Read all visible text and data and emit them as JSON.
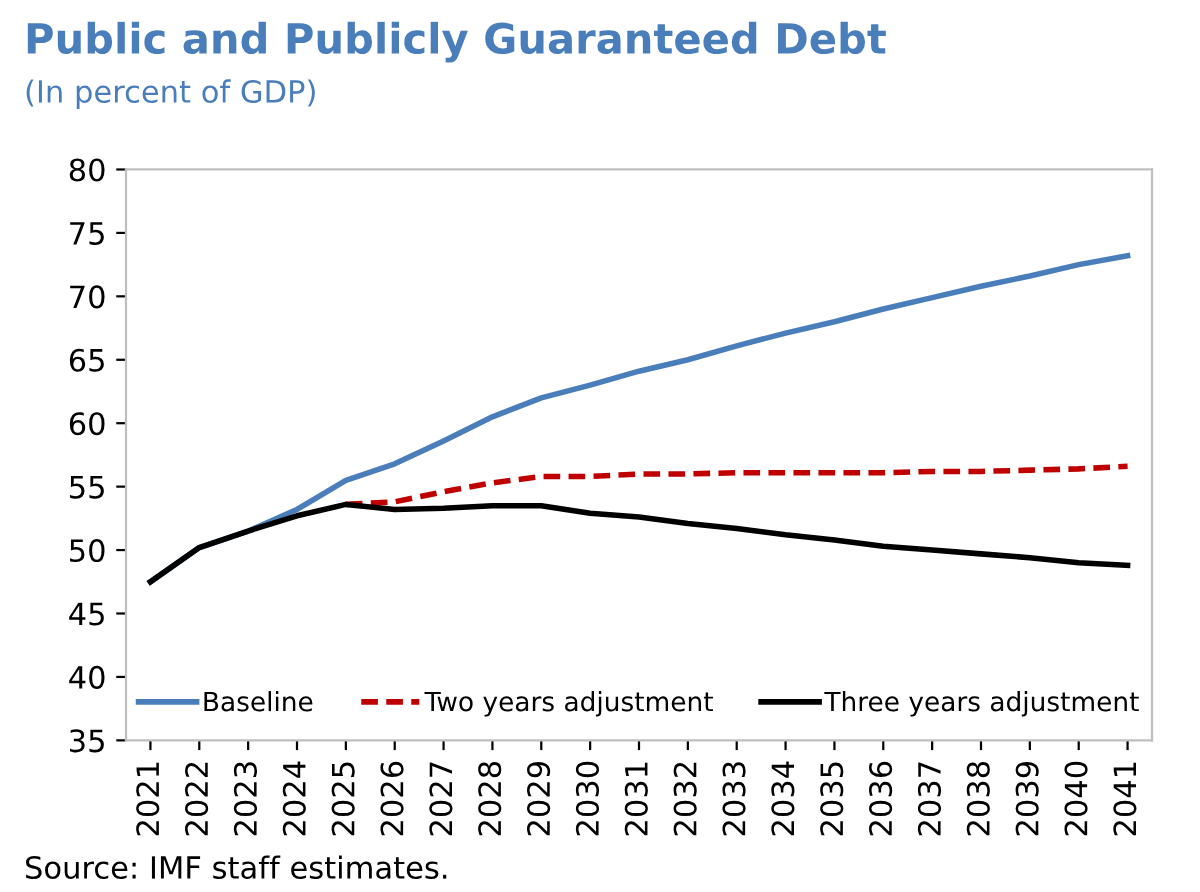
{
  "chart_data": {
    "type": "line",
    "title": "Public and Publicly Guaranteed Debt",
    "subtitle": "(In percent of GDP)",
    "categories": [
      "2021",
      "2022",
      "2023",
      "2024",
      "2025",
      "2026",
      "2027",
      "2028",
      "2029",
      "2030",
      "2031",
      "2032",
      "2033",
      "2034",
      "2035",
      "2036",
      "2037",
      "2038",
      "2039",
      "2040",
      "2041"
    ],
    "series": [
      {
        "name": "Baseline",
        "color": "#4a7ebb",
        "line_style": "solid",
        "values": [
          47.5,
          50.2,
          51.5,
          53.2,
          55.5,
          56.8,
          58.6,
          60.5,
          62.0,
          63.0,
          64.1,
          65.0,
          66.1,
          67.1,
          68.0,
          69.0,
          69.9,
          70.8,
          71.6,
          72.5,
          73.2
        ]
      },
      {
        "name": "Two years adjustment",
        "color": "#c00000",
        "line_style": "dashed",
        "values": [
          null,
          null,
          null,
          null,
          53.6,
          53.8,
          54.6,
          55.3,
          55.8,
          55.8,
          56.0,
          56.0,
          56.1,
          56.1,
          56.1,
          56.1,
          56.2,
          56.2,
          56.3,
          56.4,
          56.6
        ]
      },
      {
        "name": "Three years adjustment",
        "color": "#000000",
        "line_style": "solid",
        "values": [
          47.5,
          50.2,
          51.5,
          52.7,
          53.6,
          53.2,
          53.3,
          53.5,
          53.5,
          52.9,
          52.6,
          52.1,
          51.7,
          51.2,
          50.8,
          50.3,
          50.0,
          49.7,
          49.4,
          49.0,
          48.8
        ]
      }
    ],
    "ylim": [
      35,
      80
    ],
    "yticks": [
      35,
      40,
      45,
      50,
      55,
      60,
      65,
      70,
      75,
      80
    ],
    "grid": false,
    "legend": "bottom",
    "marker": "none",
    "annotations": [
      "Source: IMF staff estimates."
    ]
  }
}
